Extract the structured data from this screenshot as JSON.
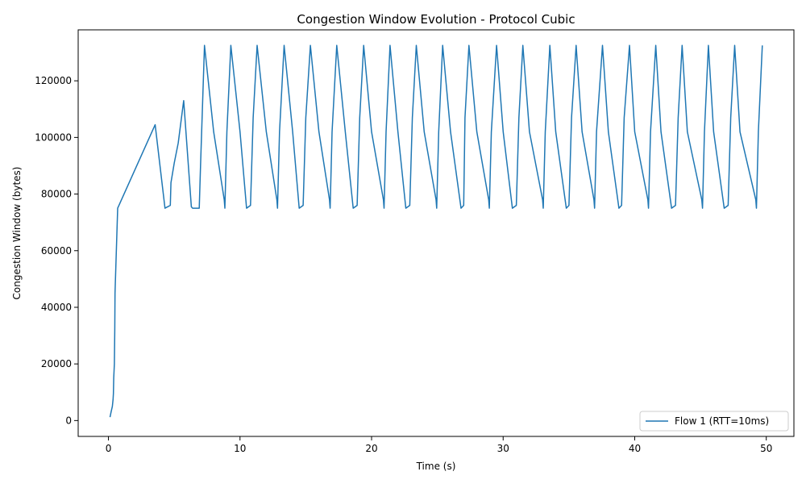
{
  "chart_data": {
    "type": "line",
    "title": "Congestion Window Evolution - Protocol Cubic",
    "xlabel": "Time (s)",
    "ylabel": "Congestion Window (bytes)",
    "xlim": [
      -2.3,
      52.1
    ],
    "ylim": [
      -5600,
      138000
    ],
    "xticks": [
      0,
      10,
      20,
      30,
      40,
      50
    ],
    "yticks": [
      0,
      20000,
      40000,
      60000,
      80000,
      100000,
      120000
    ],
    "grid": false,
    "legend_position": "lower-right",
    "color": "#1f77b4",
    "series": [
      {
        "name": "Flow 1 (RTT=10ms)",
        "x": [
          0.12,
          0.2,
          0.3,
          0.35,
          0.38,
          0.4,
          0.45,
          0.48,
          0.5,
          0.7,
          3.55,
          4.3,
          4.7,
          4.75,
          5.0,
          5.3,
          5.72,
          6.3,
          6.4,
          6.9,
          7.0,
          7.3,
          8.0,
          8.8,
          8.85,
          9.0,
          9.3,
          10.0,
          10.5,
          10.8,
          11.0,
          11.3,
          12.0,
          12.8,
          12.85,
          13.0,
          13.35,
          14.0,
          14.5,
          14.8,
          15.0,
          15.35,
          16.0,
          16.8,
          16.85,
          17.0,
          17.35,
          18.0,
          18.6,
          18.9,
          19.1,
          19.4,
          20.0,
          20.9,
          20.95,
          21.1,
          21.4,
          22.0,
          22.6,
          22.9,
          23.1,
          23.4,
          24.0,
          24.9,
          24.95,
          25.1,
          25.4,
          26.0,
          26.8,
          27.0,
          27.1,
          27.4,
          28.0,
          28.9,
          28.95,
          29.1,
          29.5,
          30.0,
          30.7,
          31.0,
          31.2,
          31.5,
          32.0,
          33.0,
          33.05,
          33.2,
          33.55,
          34.0,
          34.8,
          35.0,
          35.2,
          35.55,
          36.0,
          36.9,
          36.95,
          37.1,
          37.55,
          38.0,
          38.8,
          39.0,
          39.2,
          39.6,
          40.0,
          41.0,
          41.05,
          41.2,
          41.6,
          42.0,
          42.8,
          43.1,
          43.3,
          43.6,
          44.0,
          45.1,
          45.15,
          45.3,
          45.6,
          46.0,
          46.8,
          47.1,
          47.3,
          47.6,
          48.0,
          49.2,
          49.25,
          49.4,
          49.7
        ],
        "y": [
          1200,
          3000,
          5000,
          7500,
          9500,
          15000,
          20000,
          32000,
          45000,
          75000,
          104500,
          75000,
          76000,
          84000,
          91000,
          98000,
          113000,
          75500,
          75000,
          75000,
          90000,
          132500,
          102000,
          78000,
          75000,
          102000,
          132500,
          102000,
          75000,
          76000,
          107000,
          132500,
          102000,
          78000,
          75000,
          102000,
          132500,
          102000,
          75000,
          76000,
          107000,
          132500,
          102000,
          78000,
          75000,
          102000,
          132500,
          102000,
          75000,
          76000,
          107000,
          132500,
          102000,
          78000,
          75000,
          102000,
          132500,
          102000,
          75000,
          76000,
          107000,
          132500,
          102000,
          78000,
          75000,
          102000,
          132500,
          102000,
          75000,
          76000,
          107000,
          132500,
          102000,
          78000,
          75000,
          102000,
          132500,
          102000,
          75000,
          76000,
          107000,
          132500,
          102000,
          78000,
          75000,
          102000,
          132500,
          102000,
          75000,
          76000,
          107000,
          132500,
          102000,
          78000,
          75000,
          102000,
          132500,
          102000,
          75000,
          76000,
          107000,
          132500,
          102000,
          78000,
          75000,
          102000,
          132500,
          102000,
          75000,
          76000,
          107000,
          132500,
          102000,
          78000,
          75000,
          102000,
          132500,
          102000,
          75000,
          76000,
          107000,
          132500,
          102000,
          78000,
          75000,
          102000,
          132500
        ]
      }
    ]
  }
}
